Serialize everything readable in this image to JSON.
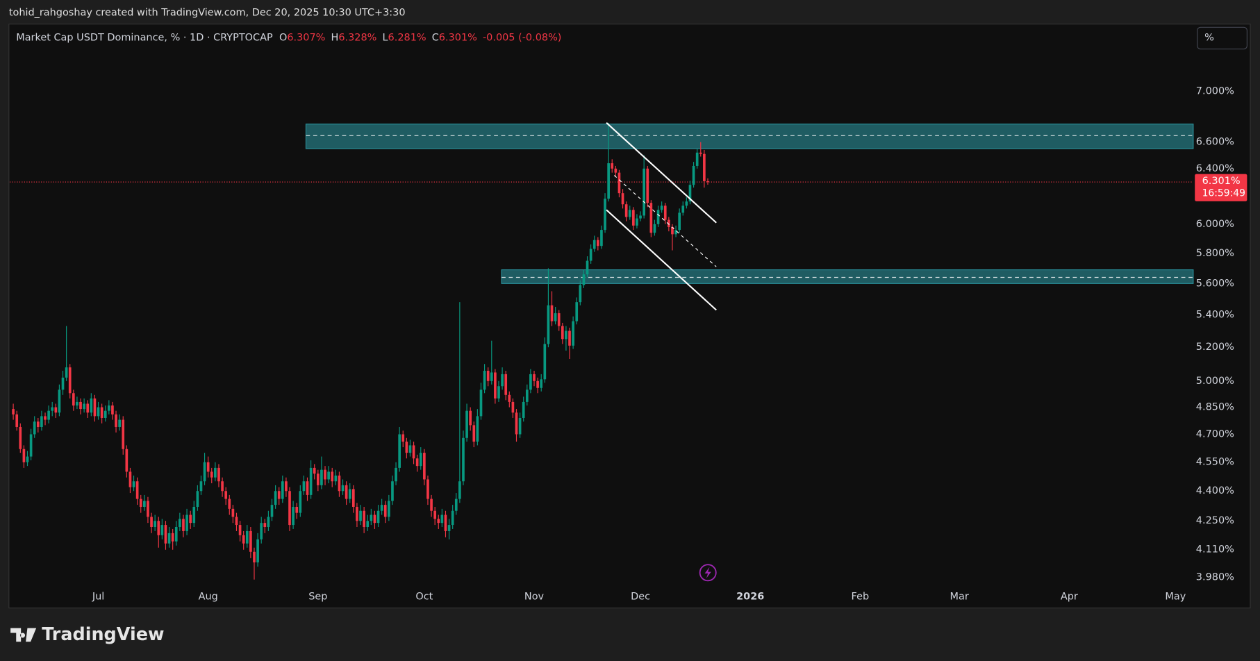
{
  "attribution": "tohid_rahgoshay created with TradingView.com, Dec 20, 2025 10:30 UTC+3:30",
  "logo": "TradingView",
  "unit_button": "%",
  "chart_data": {
    "type": "candlestick",
    "title": "Market Cap USDT Dominance, % · 1D · CRYPTOCAP",
    "legend_ohlc": [
      {
        "key": "O",
        "value": 6.307,
        "label": "6.307%"
      },
      {
        "key": "H",
        "value": 6.328,
        "label": "6.328%"
      },
      {
        "key": "L",
        "value": 6.281,
        "label": "6.281%"
      },
      {
        "key": "C",
        "value": 6.301,
        "label": "6.301%"
      }
    ],
    "change_label": "-0.005 (-0.08%)",
    "up_color": "#089981",
    "down_color": "#f23645",
    "yscale": "log",
    "grid": false,
    "ylim": [
      3.939,
      7.563
    ],
    "yticks": [
      {
        "value": 3.98,
        "label": "3.980%"
      },
      {
        "value": 4.11,
        "label": "4.110%"
      },
      {
        "value": 4.25,
        "label": "4.250%"
      },
      {
        "value": 4.4,
        "label": "4.400%"
      },
      {
        "value": 4.55,
        "label": "4.550%"
      },
      {
        "value": 4.7,
        "label": "4.700%"
      },
      {
        "value": 4.85,
        "label": "4.850%"
      },
      {
        "value": 5,
        "label": "5.000%"
      },
      {
        "value": 5.2,
        "label": "5.200%"
      },
      {
        "value": 5.4,
        "label": "5.400%"
      },
      {
        "value": 5.6,
        "label": "5.600%"
      },
      {
        "value": 5.8,
        "label": "5.800%"
      },
      {
        "value": 6,
        "label": "6.000%"
      },
      {
        "value": 6.4,
        "label": "6.400%"
      },
      {
        "value": 6.6,
        "label": "6.600%"
      },
      {
        "value": 7,
        "label": "7.000%"
      }
    ],
    "xlim": [
      -1,
      333
    ],
    "xticks": [
      {
        "value": 24,
        "label": "Jul"
      },
      {
        "value": 55,
        "label": "Aug"
      },
      {
        "value": 86,
        "label": "Sep"
      },
      {
        "value": 116,
        "label": "Oct"
      },
      {
        "value": 147,
        "label": "Nov"
      },
      {
        "value": 177,
        "label": "Dec"
      },
      {
        "value": 208,
        "label": "2026",
        "emphasis": true
      },
      {
        "value": 239,
        "label": "Feb"
      },
      {
        "value": 267,
        "label": "Mar"
      },
      {
        "value": 298,
        "label": "Apr"
      },
      {
        "value": 328,
        "label": "May"
      }
    ],
    "last_price": {
      "value": 6.301,
      "label": "6.301%",
      "countdown": "16:59:49"
    },
    "zone_color": "#2a8f99",
    "drawing_color": "#ffffff",
    "zones": [
      {
        "range": [
          6.55,
          6.74
        ],
        "mid": 6.65,
        "x": [
          82.6,
          333
        ]
      },
      {
        "range": [
          5.6,
          5.69
        ],
        "mid": 5.64,
        "x": [
          137.8,
          333
        ]
      }
    ],
    "lines": [
      {
        "x": [
          167.4,
          198.4
        ],
        "y": [
          6.75,
          6.01
        ],
        "dashed": false
      },
      {
        "x": [
          167.4,
          198.4
        ],
        "y": [
          6.1,
          5.43
        ],
        "dashed": false
      },
      {
        "x": [
          169.6,
          198.4
        ],
        "y": [
          6.35,
          5.71
        ],
        "dashed": true
      }
    ],
    "candles": [
      [
        4.84,
        4.87,
        4.78,
        4.81
      ],
      [
        4.81,
        4.83,
        4.72,
        4.74
      ],
      [
        4.74,
        4.76,
        4.6,
        4.62
      ],
      [
        4.62,
        4.64,
        4.52,
        4.55
      ],
      [
        4.55,
        4.61,
        4.53,
        4.58
      ],
      [
        4.58,
        4.73,
        4.56,
        4.7
      ],
      [
        4.7,
        4.8,
        4.68,
        4.77
      ],
      [
        4.77,
        4.79,
        4.71,
        4.74
      ],
      [
        4.74,
        4.83,
        4.72,
        4.8
      ],
      [
        4.8,
        4.82,
        4.75,
        4.78
      ],
      [
        4.78,
        4.86,
        4.76,
        4.83
      ],
      [
        4.83,
        4.88,
        4.8,
        4.85
      ],
      [
        4.85,
        4.87,
        4.79,
        4.82
      ],
      [
        4.82,
        4.98,
        4.8,
        4.95
      ],
      [
        4.95,
        5.06,
        4.92,
        5.02
      ],
      [
        5.02,
        5.33,
        5.0,
        5.08
      ],
      [
        5.08,
        5.1,
        4.9,
        4.93
      ],
      [
        4.93,
        4.95,
        4.83,
        4.86
      ],
      [
        4.86,
        4.91,
        4.84,
        4.88
      ],
      [
        4.88,
        4.9,
        4.81,
        4.84
      ],
      [
        4.84,
        4.9,
        4.82,
        4.87
      ],
      [
        4.87,
        4.89,
        4.79,
        4.82
      ],
      [
        4.82,
        4.93,
        4.8,
        4.9
      ],
      [
        4.9,
        4.92,
        4.77,
        4.8
      ],
      [
        4.8,
        4.88,
        4.78,
        4.85
      ],
      [
        4.85,
        4.87,
        4.76,
        4.79
      ],
      [
        4.79,
        4.86,
        4.77,
        4.83
      ],
      [
        4.83,
        4.89,
        4.81,
        4.86
      ],
      [
        4.86,
        4.88,
        4.78,
        4.81
      ],
      [
        4.81,
        4.83,
        4.71,
        4.74
      ],
      [
        4.74,
        4.81,
        4.72,
        4.78
      ],
      [
        4.78,
        4.8,
        4.59,
        4.62
      ],
      [
        4.62,
        4.64,
        4.47,
        4.5
      ],
      [
        4.5,
        4.52,
        4.39,
        4.42
      ],
      [
        4.42,
        4.48,
        4.4,
        4.45
      ],
      [
        4.45,
        4.47,
        4.33,
        4.36
      ],
      [
        4.36,
        4.38,
        4.29,
        4.32
      ],
      [
        4.32,
        4.38,
        4.3,
        4.35
      ],
      [
        4.35,
        4.37,
        4.24,
        4.27
      ],
      [
        4.27,
        4.29,
        4.19,
        4.22
      ],
      [
        4.22,
        4.28,
        4.2,
        4.25
      ],
      [
        4.25,
        4.27,
        4.12,
        4.18
      ],
      [
        4.18,
        4.26,
        4.16,
        4.23
      ],
      [
        4.23,
        4.25,
        4.11,
        4.14
      ],
      [
        4.14,
        4.22,
        4.12,
        4.19
      ],
      [
        4.19,
        4.21,
        4.11,
        4.15
      ],
      [
        4.15,
        4.25,
        4.13,
        4.22
      ],
      [
        4.22,
        4.29,
        4.2,
        4.26
      ],
      [
        4.26,
        4.28,
        4.17,
        4.2
      ],
      [
        4.2,
        4.31,
        4.18,
        4.28
      ],
      [
        4.28,
        4.3,
        4.21,
        4.24
      ],
      [
        4.24,
        4.35,
        4.22,
        4.32
      ],
      [
        4.32,
        4.43,
        4.3,
        4.4
      ],
      [
        4.4,
        4.48,
        4.38,
        4.45
      ],
      [
        4.45,
        4.6,
        4.43,
        4.55
      ],
      [
        4.55,
        4.58,
        4.47,
        4.5
      ],
      [
        4.5,
        4.52,
        4.44,
        4.47
      ],
      [
        4.47,
        4.55,
        4.45,
        4.52
      ],
      [
        4.52,
        4.54,
        4.42,
        4.45
      ],
      [
        4.45,
        4.47,
        4.37,
        4.4
      ],
      [
        4.4,
        4.42,
        4.33,
        4.36
      ],
      [
        4.36,
        4.38,
        4.28,
        4.31
      ],
      [
        4.31,
        4.33,
        4.24,
        4.27
      ],
      [
        4.27,
        4.29,
        4.2,
        4.23
      ],
      [
        4.23,
        4.25,
        4.15,
        4.18
      ],
      [
        4.18,
        4.2,
        4.11,
        4.14
      ],
      [
        4.14,
        4.23,
        4.12,
        4.2
      ],
      [
        4.2,
        4.22,
        4.07,
        4.1
      ],
      [
        4.1,
        4.12,
        3.97,
        4.05
      ],
      [
        4.05,
        4.19,
        4.03,
        4.16
      ],
      [
        4.16,
        4.27,
        4.14,
        4.24
      ],
      [
        4.24,
        4.26,
        4.19,
        4.22
      ],
      [
        4.22,
        4.3,
        4.2,
        4.27
      ],
      [
        4.27,
        4.36,
        4.25,
        4.33
      ],
      [
        4.33,
        4.43,
        4.31,
        4.4
      ],
      [
        4.4,
        4.42,
        4.33,
        4.36
      ],
      [
        4.36,
        4.48,
        4.34,
        4.45
      ],
      [
        4.45,
        4.47,
        4.37,
        4.4
      ],
      [
        4.4,
        4.42,
        4.2,
        4.23
      ],
      [
        4.23,
        4.35,
        4.21,
        4.32
      ],
      [
        4.32,
        4.34,
        4.26,
        4.29
      ],
      [
        4.29,
        4.43,
        4.27,
        4.4
      ],
      [
        4.4,
        4.48,
        4.38,
        4.45
      ],
      [
        4.45,
        4.47,
        4.35,
        4.38
      ],
      [
        4.38,
        4.56,
        4.36,
        4.52
      ],
      [
        4.52,
        4.54,
        4.46,
        4.49
      ],
      [
        4.49,
        4.51,
        4.4,
        4.43
      ],
      [
        4.43,
        4.58,
        4.41,
        4.51
      ],
      [
        4.51,
        4.53,
        4.43,
        4.46
      ],
      [
        4.46,
        4.53,
        4.44,
        4.5
      ],
      [
        4.5,
        4.52,
        4.42,
        4.45
      ],
      [
        4.45,
        4.51,
        4.43,
        4.48
      ],
      [
        4.48,
        4.5,
        4.37,
        4.4
      ],
      [
        4.4,
        4.46,
        4.38,
        4.43
      ],
      [
        4.43,
        4.45,
        4.33,
        4.36
      ],
      [
        4.36,
        4.44,
        4.34,
        4.41
      ],
      [
        4.41,
        4.43,
        4.29,
        4.32
      ],
      [
        4.32,
        4.34,
        4.22,
        4.25
      ],
      [
        4.25,
        4.33,
        4.23,
        4.3
      ],
      [
        4.3,
        4.32,
        4.19,
        4.22
      ],
      [
        4.22,
        4.28,
        4.2,
        4.25
      ],
      [
        4.25,
        4.31,
        4.23,
        4.28
      ],
      [
        4.28,
        4.3,
        4.21,
        4.24
      ],
      [
        4.24,
        4.33,
        4.22,
        4.3
      ],
      [
        4.3,
        4.36,
        4.28,
        4.33
      ],
      [
        4.33,
        4.35,
        4.24,
        4.27
      ],
      [
        4.27,
        4.38,
        4.25,
        4.35
      ],
      [
        4.35,
        4.48,
        4.33,
        4.45
      ],
      [
        4.45,
        4.55,
        4.43,
        4.52
      ],
      [
        4.52,
        4.74,
        4.5,
        4.7
      ],
      [
        4.7,
        4.72,
        4.63,
        4.66
      ],
      [
        4.66,
        4.68,
        4.57,
        4.6
      ],
      [
        4.6,
        4.67,
        4.58,
        4.64
      ],
      [
        4.64,
        4.66,
        4.54,
        4.57
      ],
      [
        4.57,
        4.59,
        4.5,
        4.53
      ],
      [
        4.53,
        4.63,
        4.51,
        4.6
      ],
      [
        4.6,
        4.62,
        4.43,
        4.46
      ],
      [
        4.46,
        4.48,
        4.33,
        4.36
      ],
      [
        4.36,
        4.38,
        4.27,
        4.3
      ],
      [
        4.3,
        4.32,
        4.23,
        4.26
      ],
      [
        4.26,
        4.28,
        4.21,
        4.24
      ],
      [
        4.24,
        4.31,
        4.22,
        4.28
      ],
      [
        4.28,
        4.3,
        4.17,
        4.2
      ],
      [
        4.2,
        4.26,
        4.16,
        4.23
      ],
      [
        4.23,
        4.33,
        4.21,
        4.3
      ],
      [
        4.3,
        4.39,
        4.28,
        4.36
      ],
      [
        4.36,
        5.48,
        4.34,
        4.45
      ],
      [
        4.45,
        4.72,
        4.43,
        4.68
      ],
      [
        4.68,
        4.87,
        4.66,
        4.83
      ],
      [
        4.83,
        4.85,
        4.72,
        4.75
      ],
      [
        4.75,
        4.77,
        4.63,
        4.66
      ],
      [
        4.66,
        4.84,
        4.64,
        4.8
      ],
      [
        4.8,
        4.99,
        4.78,
        4.95
      ],
      [
        4.95,
        5.1,
        4.93,
        5.06
      ],
      [
        5.06,
        5.08,
        4.97,
        5.0
      ],
      [
        5.0,
        5.24,
        4.98,
        5.05
      ],
      [
        5.05,
        5.07,
        4.87,
        4.9
      ],
      [
        4.9,
        5.0,
        4.88,
        4.97
      ],
      [
        4.97,
        5.08,
        4.95,
        5.04
      ],
      [
        5.04,
        5.06,
        4.89,
        4.92
      ],
      [
        4.92,
        4.94,
        4.85,
        4.88
      ],
      [
        4.88,
        4.9,
        4.79,
        4.82
      ],
      [
        4.82,
        4.84,
        4.66,
        4.7
      ],
      [
        4.7,
        4.82,
        4.68,
        4.79
      ],
      [
        4.79,
        4.91,
        4.77,
        4.88
      ],
      [
        4.88,
        4.98,
        4.86,
        4.95
      ],
      [
        4.95,
        5.07,
        4.93,
        5.04
      ],
      [
        5.04,
        5.06,
        4.97,
        5.0
      ],
      [
        5.0,
        5.02,
        4.93,
        4.96
      ],
      [
        4.96,
        5.04,
        4.94,
        5.01
      ],
      [
        5.01,
        5.26,
        4.99,
        5.22
      ],
      [
        5.22,
        5.7,
        5.2,
        5.46
      ],
      [
        5.46,
        5.55,
        5.33,
        5.36
      ],
      [
        5.36,
        5.45,
        5.34,
        5.41
      ],
      [
        5.41,
        5.43,
        5.3,
        5.33
      ],
      [
        5.33,
        5.35,
        5.22,
        5.25
      ],
      [
        5.25,
        5.33,
        5.18,
        5.3
      ],
      [
        5.3,
        5.32,
        5.13,
        5.21
      ],
      [
        5.21,
        5.39,
        5.19,
        5.36
      ],
      [
        5.36,
        5.51,
        5.34,
        5.48
      ],
      [
        5.48,
        5.62,
        5.46,
        5.59
      ],
      [
        5.59,
        5.69,
        5.57,
        5.66
      ],
      [
        5.66,
        5.78,
        5.64,
        5.75
      ],
      [
        5.75,
        5.86,
        5.73,
        5.83
      ],
      [
        5.83,
        5.92,
        5.81,
        5.89
      ],
      [
        5.89,
        5.91,
        5.82,
        5.85
      ],
      [
        5.85,
        5.99,
        5.83,
        5.96
      ],
      [
        5.96,
        6.22,
        5.94,
        6.18
      ],
      [
        6.18,
        6.75,
        6.16,
        6.44
      ],
      [
        6.44,
        6.47,
        6.37,
        6.4
      ],
      [
        6.4,
        6.42,
        6.34,
        6.37
      ],
      [
        6.37,
        6.39,
        6.19,
        6.22
      ],
      [
        6.22,
        6.25,
        6.11,
        6.14
      ],
      [
        6.14,
        6.16,
        6.02,
        6.05
      ],
      [
        6.05,
        6.13,
        6.03,
        6.1
      ],
      [
        6.1,
        6.12,
        5.96,
        5.99
      ],
      [
        5.99,
        6.07,
        5.97,
        6.04
      ],
      [
        6.04,
        6.09,
        6.02,
        6.06
      ],
      [
        6.06,
        6.5,
        6.04,
        6.4
      ],
      [
        6.4,
        6.42,
        6.12,
        6.15
      ],
      [
        6.15,
        6.17,
        5.91,
        5.94
      ],
      [
        5.94,
        6.03,
        5.92,
        6.0
      ],
      [
        6.0,
        6.13,
        5.98,
        6.1
      ],
      [
        6.1,
        6.16,
        6.08,
        6.13
      ],
      [
        6.13,
        6.15,
        6.0,
        6.03
      ],
      [
        6.03,
        6.05,
        5.95,
        5.98
      ],
      [
        5.98,
        6.0,
        5.82,
        5.93
      ],
      [
        5.93,
        5.99,
        5.91,
        5.96
      ],
      [
        5.96,
        6.11,
        5.94,
        6.08
      ],
      [
        6.08,
        6.16,
        6.06,
        6.13
      ],
      [
        6.13,
        6.19,
        6.11,
        6.16
      ],
      [
        6.16,
        6.31,
        6.14,
        6.28
      ],
      [
        6.28,
        6.45,
        6.26,
        6.42
      ],
      [
        6.42,
        6.55,
        6.4,
        6.52
      ],
      [
        6.52,
        6.6,
        6.49,
        6.51
      ],
      [
        6.51,
        6.54,
        6.26,
        6.307
      ],
      [
        6.307,
        6.328,
        6.281,
        6.301
      ]
    ]
  }
}
